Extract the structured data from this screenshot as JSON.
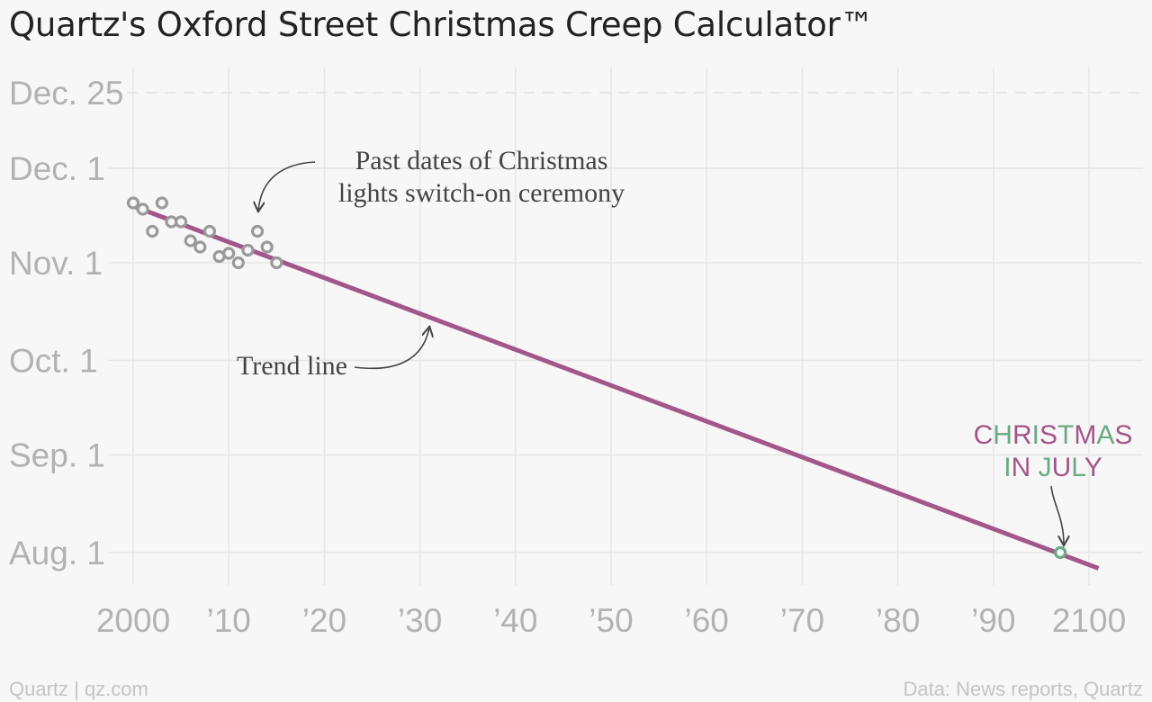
{
  "title": "Quartz's Oxford Street Christmas Creep Calculator™",
  "footer": {
    "source_left": "Quartz | qz.com",
    "source_right": "Data: News reports, Quartz"
  },
  "colors": {
    "background": "#f7f7f7",
    "trend_line": "#a3568a",
    "points": "#9a9a9a",
    "point_fill": "#f7f7f7",
    "highlight_point": "#6aaa82",
    "grid": "#e6e6e6",
    "axis_text": "#b2b2b2",
    "annotation_text": "#444444",
    "christmas_purple": "#a3568a",
    "christmas_green": "#6aaa82"
  },
  "chart_data": {
    "type": "scatter",
    "xlim": [
      2000,
      2100
    ],
    "ylim": [
      "Aug. 1",
      "Dec. 25"
    ],
    "grid": true,
    "x_ticks": [
      {
        "value": 2000,
        "label": "2000"
      },
      {
        "value": 2010,
        "label": "’10"
      },
      {
        "value": 2020,
        "label": "’20"
      },
      {
        "value": 2030,
        "label": "’30"
      },
      {
        "value": 2040,
        "label": "’40"
      },
      {
        "value": 2050,
        "label": "’50"
      },
      {
        "value": 2060,
        "label": "’60"
      },
      {
        "value": 2070,
        "label": "’70"
      },
      {
        "value": 2080,
        "label": "’80"
      },
      {
        "value": 2090,
        "label": "’90"
      },
      {
        "value": 2100,
        "label": "2100"
      }
    ],
    "y_ticks": [
      {
        "value": "Aug. 1",
        "label": "Aug. 1",
        "dashed": false
      },
      {
        "value": "Sep. 1",
        "label": "Sep. 1",
        "dashed": false
      },
      {
        "value": "Oct. 1",
        "label": "Oct. 1",
        "dashed": false
      },
      {
        "value": "Nov. 1",
        "label": "Nov. 1",
        "dashed": false
      },
      {
        "value": "Dec. 1",
        "label": "Dec. 1",
        "dashed": false
      },
      {
        "value": "Dec. 25",
        "label": "Dec. 25",
        "dashed": true
      }
    ],
    "series": [
      {
        "type": "scatter",
        "points": [
          {
            "x": 2000,
            "y": "Nov. 20"
          },
          {
            "x": 2001,
            "y": "Nov. 18"
          },
          {
            "x": 2002,
            "y": "Nov. 11"
          },
          {
            "x": 2003,
            "y": "Nov. 20"
          },
          {
            "x": 2004,
            "y": "Nov. 14"
          },
          {
            "x": 2005,
            "y": "Nov. 14"
          },
          {
            "x": 2006,
            "y": "Nov. 8"
          },
          {
            "x": 2007,
            "y": "Nov. 6"
          },
          {
            "x": 2008,
            "y": "Nov. 11"
          },
          {
            "x": 2009,
            "y": "Nov. 3"
          },
          {
            "x": 2010,
            "y": "Nov. 4"
          },
          {
            "x": 2011,
            "y": "Nov. 1"
          },
          {
            "x": 2012,
            "y": "Nov. 5"
          },
          {
            "x": 2013,
            "y": "Nov. 11"
          },
          {
            "x": 2014,
            "y": "Nov. 6"
          },
          {
            "x": 2015,
            "y": "Nov. 1"
          }
        ]
      },
      {
        "type": "line",
        "points": [
          {
            "x": 2000,
            "y": "Nov. 19"
          },
          {
            "x": 2101,
            "y": "Jul. 27"
          }
        ]
      }
    ],
    "highlight_point": {
      "x": 2097,
      "y": "Aug. 1"
    },
    "annotations": {
      "past_dates": [
        "Past dates of Christmas",
        "lights switch-on ceremony"
      ],
      "trend": "Trend line",
      "christmas_line1": "CHRISTMAS",
      "christmas_line2": "IN JULY"
    }
  }
}
